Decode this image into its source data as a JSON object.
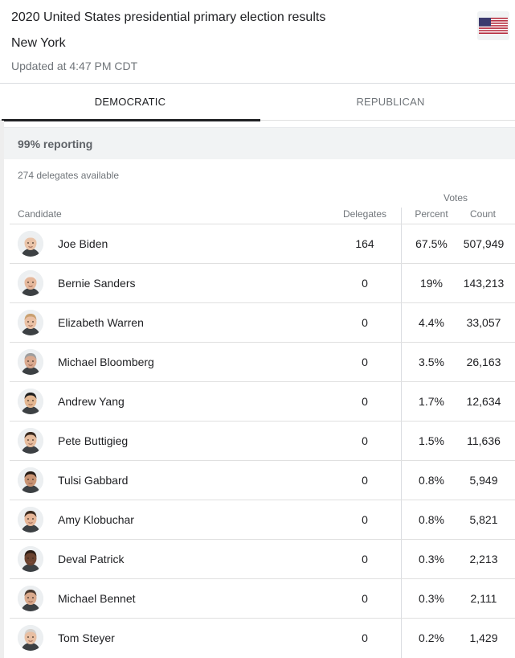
{
  "header": {
    "title": "2020 United States presidential primary election results",
    "subtitle": "New York",
    "updated": "Updated at 4:47 PM CDT",
    "flag_icon": "us-flag-icon"
  },
  "tabs": [
    {
      "label": "DEMOCRATIC",
      "selected": true
    },
    {
      "label": "REPUBLICAN",
      "selected": false
    }
  ],
  "reporting": "99% reporting",
  "delegates_available": "274 delegates available",
  "columns": {
    "votes": "Votes",
    "candidate": "Candidate",
    "delegates": "Delegates",
    "percent": "Percent",
    "count": "Count"
  },
  "candidates": [
    {
      "name": "Joe Biden",
      "delegates": "164",
      "percent": "67.5%",
      "count": "507,949",
      "skin": "#e9c3a8",
      "hair": "#eeeeee"
    },
    {
      "name": "Bernie Sanders",
      "delegates": "0",
      "percent": "19%",
      "count": "143,213",
      "skin": "#e5b89c",
      "hair": "#f2f2f2"
    },
    {
      "name": "Elizabeth Warren",
      "delegates": "0",
      "percent": "4.4%",
      "count": "33,057",
      "skin": "#eac1a5",
      "hair": "#c9a070"
    },
    {
      "name": "Michael Bloomberg",
      "delegates": "0",
      "percent": "3.5%",
      "count": "26,163",
      "skin": "#d9a98f",
      "hair": "#9e9e9e"
    },
    {
      "name": "Andrew Yang",
      "delegates": "0",
      "percent": "1.7%",
      "count": "12,634",
      "skin": "#e3b792",
      "hair": "#1f1f1f"
    },
    {
      "name": "Pete Buttigieg",
      "delegates": "0",
      "percent": "1.5%",
      "count": "11,636",
      "skin": "#e6bc9d",
      "hair": "#3a2a20"
    },
    {
      "name": "Tulsi Gabbard",
      "delegates": "0",
      "percent": "0.8%",
      "count": "5,949",
      "skin": "#c99474",
      "hair": "#241a14"
    },
    {
      "name": "Amy Klobuchar",
      "delegates": "0",
      "percent": "0.8%",
      "count": "5,821",
      "skin": "#e5b597",
      "hair": "#3b2a1f"
    },
    {
      "name": "Deval Patrick",
      "delegates": "0",
      "percent": "0.3%",
      "count": "2,213",
      "skin": "#6b4330",
      "hair": "#2b1d15"
    },
    {
      "name": "Michael Bennet",
      "delegates": "0",
      "percent": "0.3%",
      "count": "2,111",
      "skin": "#d9a98c",
      "hair": "#4a3a30"
    },
    {
      "name": "Tom Steyer",
      "delegates": "0",
      "percent": "0.2%",
      "count": "1,429",
      "skin": "#e8bfa3",
      "hair": "#d4d0cc"
    }
  ]
}
